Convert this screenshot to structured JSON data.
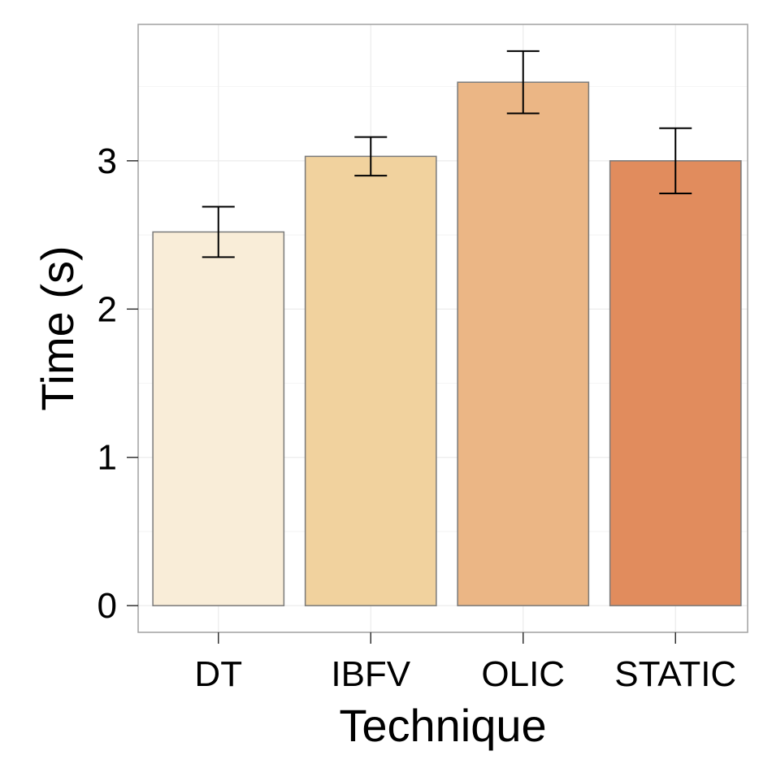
{
  "chart_data": {
    "type": "bar",
    "title": "",
    "xlabel": "Technique",
    "ylabel": "Time (s)",
    "categories": [
      "DT",
      "IBFV",
      "OLIC",
      "STATIC"
    ],
    "values": [
      2.52,
      3.03,
      3.53,
      3.0
    ],
    "error_low": [
      2.35,
      2.9,
      3.32,
      2.78
    ],
    "error_high": [
      2.69,
      3.16,
      3.74,
      3.22
    ],
    "yticks": [
      "0",
      "1",
      "2",
      "3"
    ],
    "ylim": [
      -0.18,
      3.92
    ],
    "grid": true,
    "legend": "none",
    "colors": [
      "#F9EDD8",
      "#F1D29E",
      "#EBB685",
      "#E18C5D"
    ],
    "bar_outline_color": "#7A7A7A",
    "error_bar_color": "#000000",
    "panel_border_color": "#A0A0A0",
    "grid_color": "#EBEBEB"
  }
}
